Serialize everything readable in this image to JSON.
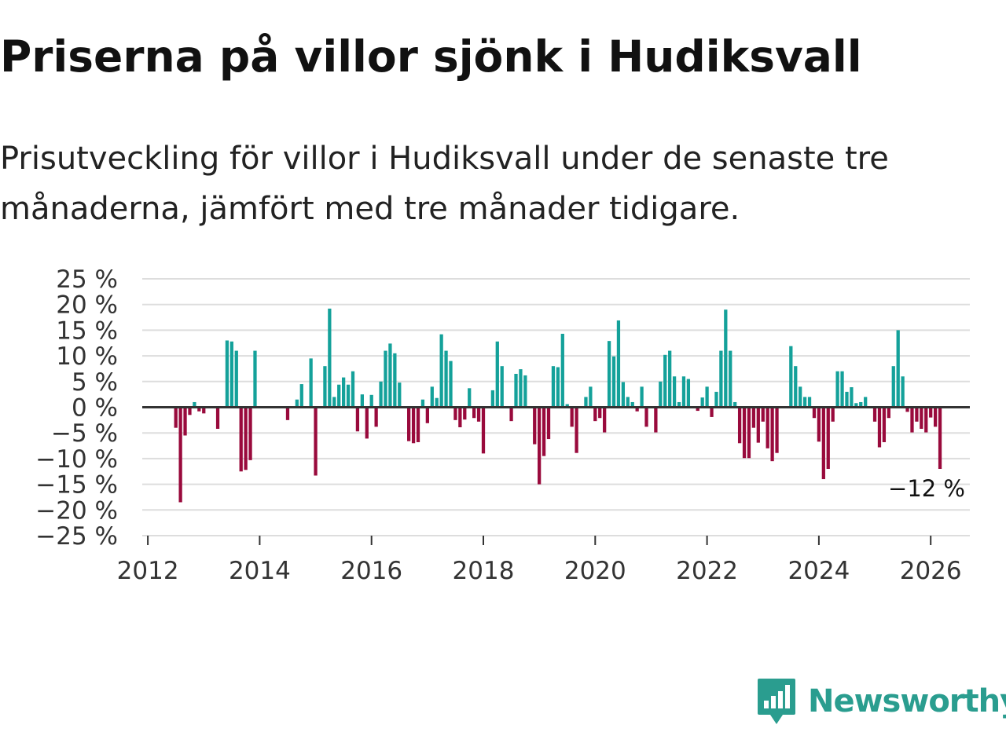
{
  "title": "Priserna på villor sjönk i Hudiksvall",
  "subtitle": "Prisutveckling för villor i Hudiksvall under de senaste tre månaderna, jämfört med tre månader tidigare.",
  "brand": {
    "name": "Newsworthy",
    "icon": "newsworthy-logo-icon"
  },
  "colors": {
    "positive": "#14a19a",
    "negative": "#990a3c",
    "grid": "#dddddd",
    "zero": "#333333",
    "brand": "#2a9d8f"
  },
  "chart_data": {
    "type": "bar",
    "title": "Priserna på villor sjönk i Hudiksvall",
    "xlabel": "",
    "ylabel": "",
    "ylim": [
      -25,
      25
    ],
    "xlim": [
      2011.9,
      2026.7
    ],
    "y_ticks": [
      25,
      20,
      15,
      10,
      5,
      0,
      -5,
      -10,
      -15,
      -20,
      -25
    ],
    "y_tick_labels": [
      "25 %",
      "20 %",
      "15 %",
      "10 %",
      "5 %",
      "0 %",
      "−5 %",
      "−10 %",
      "−15 %",
      "−20 %",
      "−25 %"
    ],
    "x_ticks": [
      2012,
      2014,
      2016,
      2018,
      2020,
      2022,
      2024,
      2026
    ],
    "x_tick_labels": [
      "2012",
      "2014",
      "2016",
      "2018",
      "2020",
      "2022",
      "2024",
      "2026"
    ],
    "start": 2012.5,
    "step_months": 1,
    "values": [
      -4,
      -18.5,
      -5.5,
      -1.5,
      1,
      -0.8,
      -1.2,
      0,
      0,
      -4.2,
      0,
      13,
      12.8,
      11,
      -12.5,
      -12.2,
      -10.3,
      11,
      0,
      0,
      0,
      0,
      0,
      0,
      -2.5,
      0,
      1.5,
      4.5,
      0,
      9.5,
      -13.3,
      0,
      8,
      19.2,
      2,
      4.4,
      5.8,
      4.4,
      7,
      -4.7,
      2.5,
      -6.1,
      2.4,
      -3.8,
      5,
      11,
      12.4,
      10.5,
      4.8,
      0,
      -6.6,
      -7,
      -6.8,
      1.5,
      -3.1,
      4,
      1.8,
      14.2,
      11,
      9,
      -2.5,
      -3.9,
      -2.4,
      3.7,
      -2.1,
      -2.8,
      -9,
      0,
      3.3,
      12.8,
      8,
      0,
      -2.7,
      6.5,
      7.4,
      6.2,
      0,
      -7.2,
      -15,
      -9.5,
      -6.2,
      8,
      7.8,
      14.3,
      0.6,
      -3.8,
      -8.9,
      0,
      2,
      4,
      -2.7,
      -2.1,
      -4.9,
      12.9,
      9.9,
      16.9,
      4.9,
      2,
      1,
      -0.8,
      4,
      -3.8,
      0,
      -4.9,
      5,
      10.2,
      11,
      6,
      1,
      6,
      5.5,
      0,
      -0.7,
      1.9,
      4,
      -1.9,
      3,
      11,
      19,
      11,
      1,
      -7,
      -9.9,
      -9.9,
      -4,
      -6.9,
      -2.8,
      -8,
      -10.5,
      -8.9,
      0,
      0,
      11.9,
      8,
      4,
      2,
      2,
      -2.1,
      -6.7,
      -14,
      -12,
      -2.8,
      7,
      7,
      3,
      3.9,
      0.8,
      1,
      2,
      0,
      -2.8,
      -7.8,
      -6.8,
      -2.1,
      8,
      15,
      6,
      -0.9,
      -4.9,
      -2.8,
      -4.2,
      -4.9,
      -2,
      -3.8,
      -12
    ]
  },
  "last_value_label": "−12 %"
}
